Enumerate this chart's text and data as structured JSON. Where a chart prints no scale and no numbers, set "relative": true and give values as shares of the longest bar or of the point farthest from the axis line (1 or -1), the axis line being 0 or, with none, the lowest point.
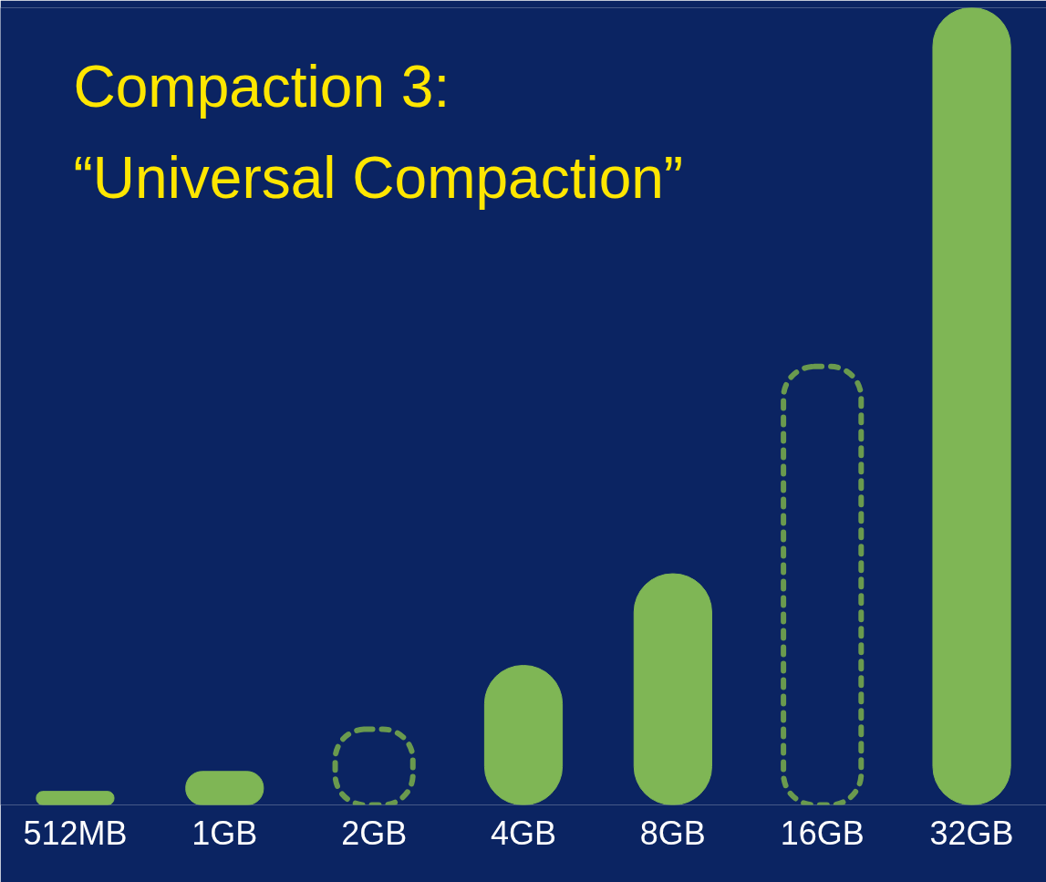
{
  "chart_data": {
    "type": "bar",
    "title": "Compaction 3:",
    "subtitle": "“Universal Compaction”",
    "relative": true,
    "categories": [
      "512MB",
      "1GB",
      "2GB",
      "4GB",
      "8GB",
      "16GB",
      "32GB"
    ],
    "series": [
      {
        "color": "#7fb655",
        "values": [
          0.017,
          0.042,
          null,
          0.175,
          0.29,
          null,
          1
        ],
        "line_style": "solid"
      },
      {
        "color": "#6a9a4e",
        "values": [
          null,
          null,
          0.095,
          null,
          null,
          0.55,
          null
        ],
        "line_style": "dashed"
      }
    ],
    "grid": false
  }
}
